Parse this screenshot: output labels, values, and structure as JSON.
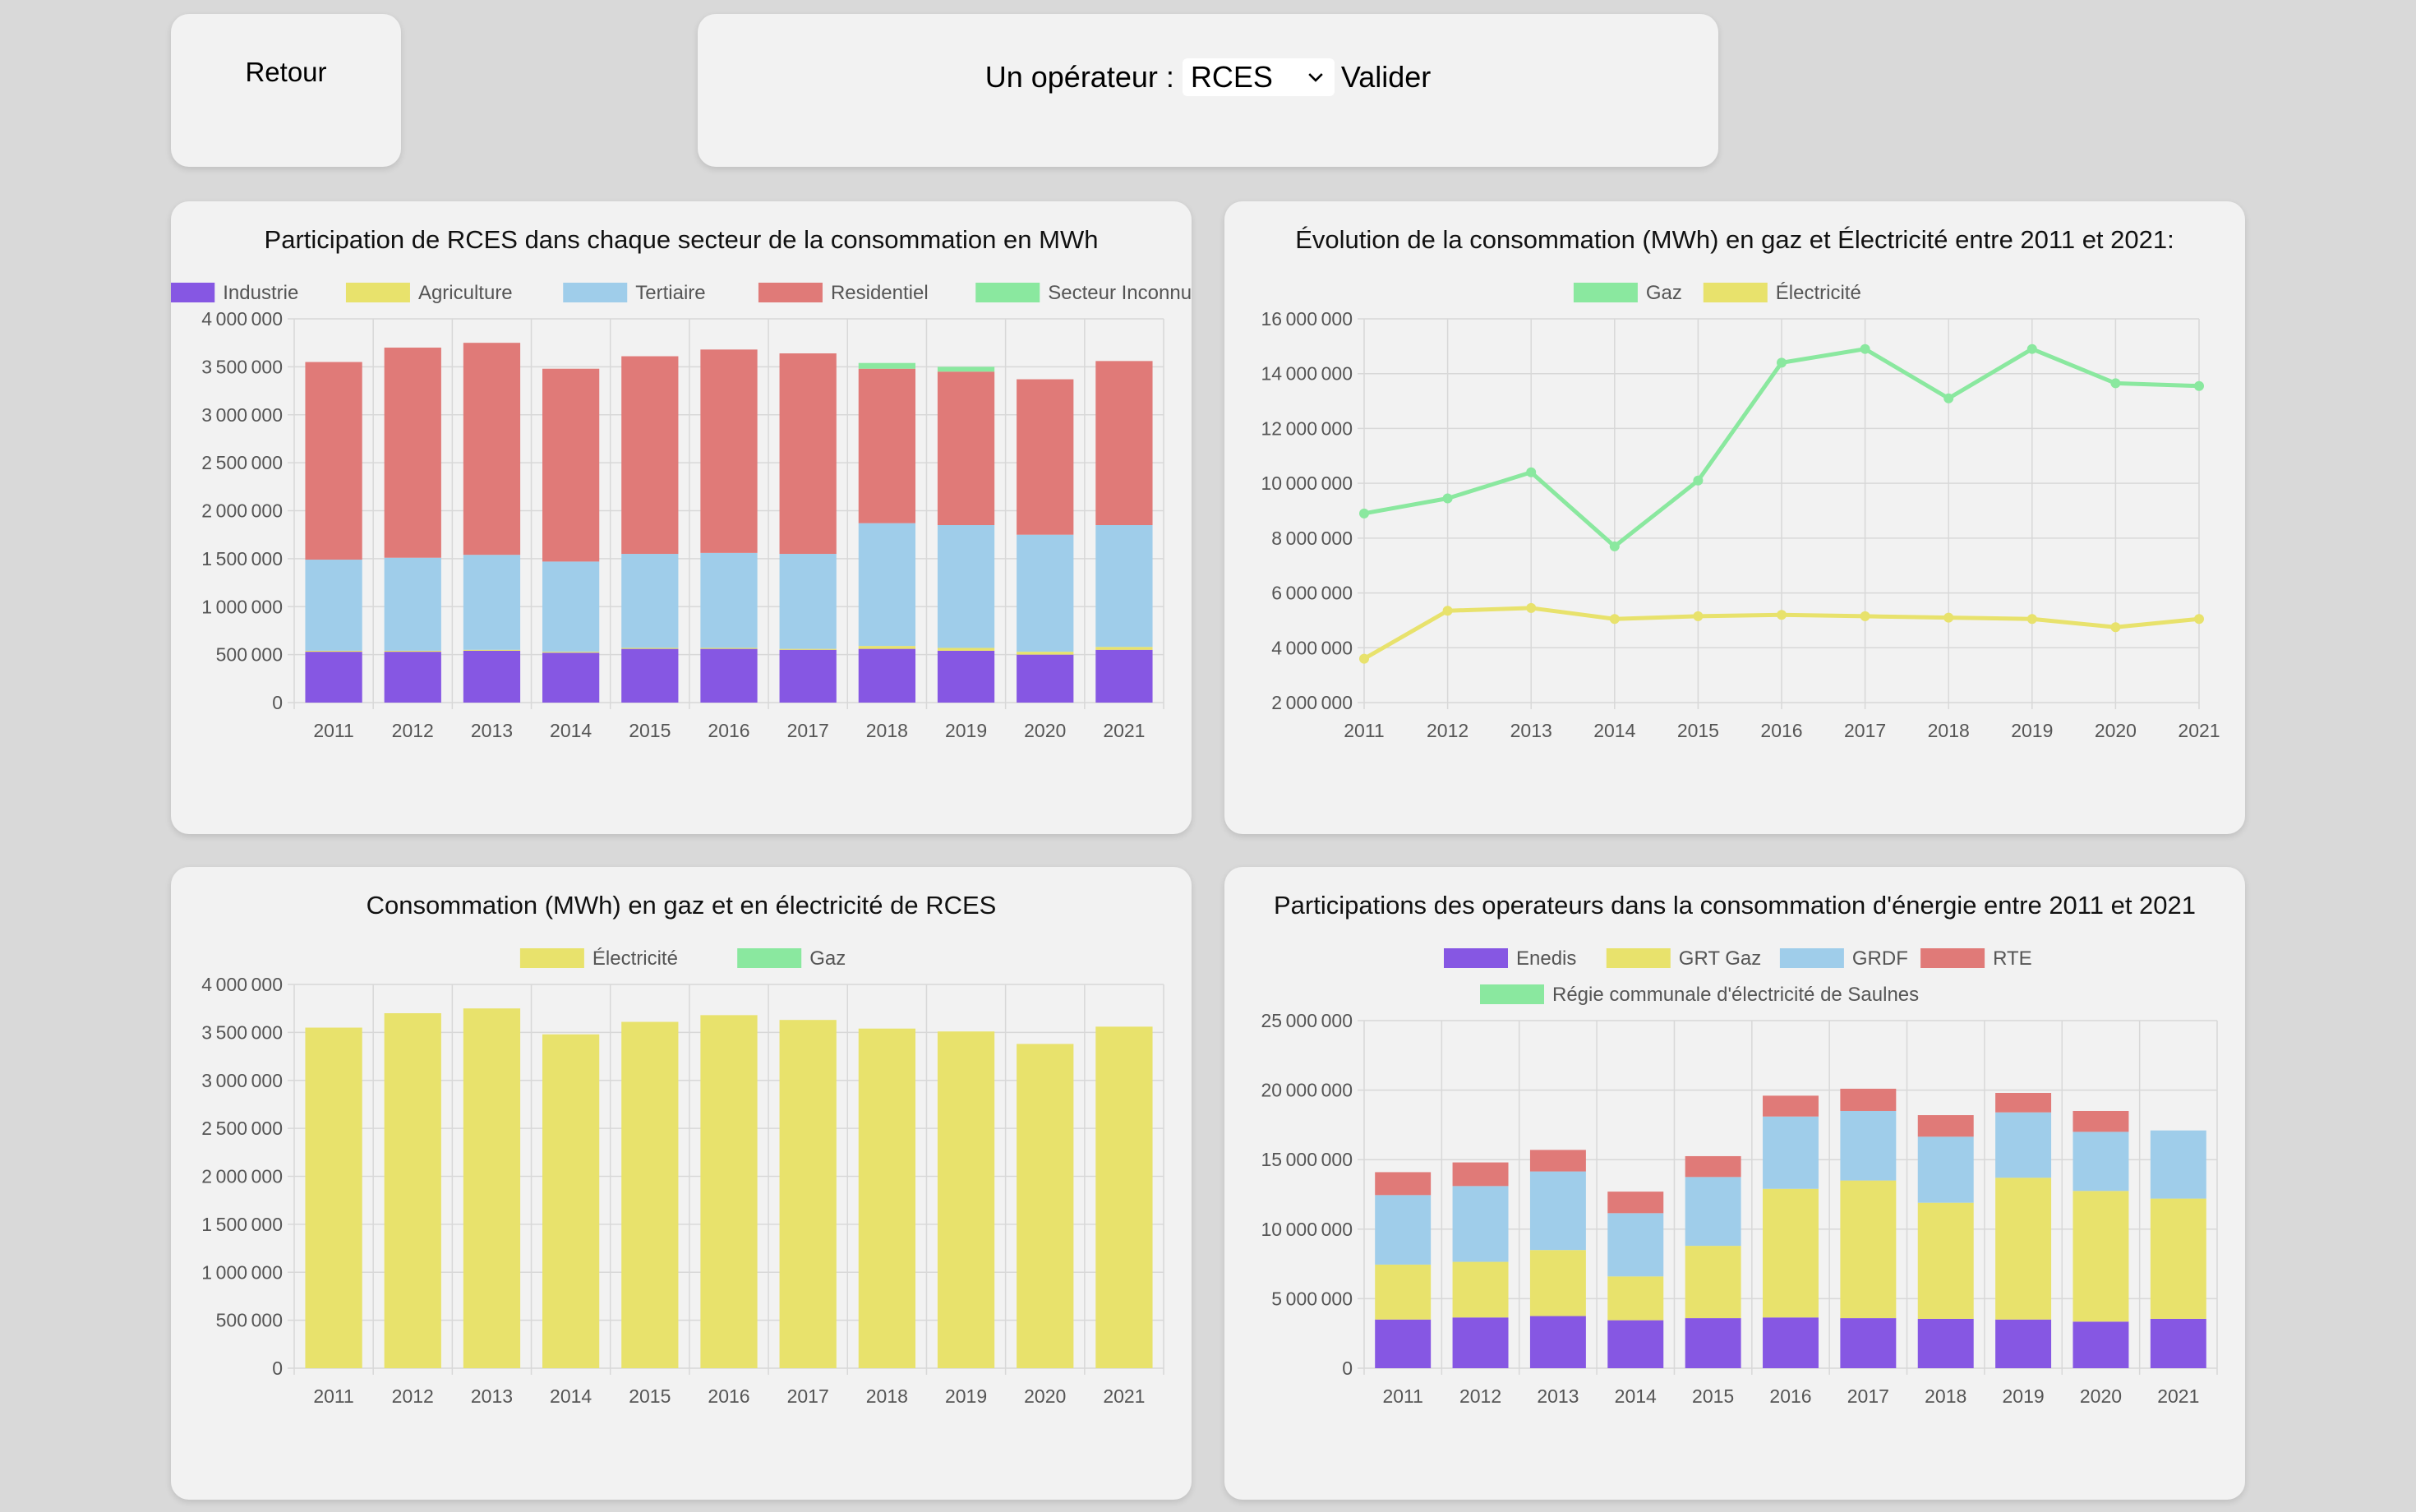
{
  "nav": {
    "back_label": "Retour"
  },
  "operator": {
    "label": "Un opérateur :",
    "selected": "RCES",
    "submit_label": "Valider"
  },
  "colors": {
    "grid": "#d8d8d8",
    "tick": "#555555",
    "purple": "#8657e3",
    "yellow": "#e8e26c",
    "blue": "#9fcdea",
    "red": "#e07a78",
    "green": "#8ae89f"
  },
  "chart_data": [
    {
      "id": "c1",
      "type": "bar",
      "stacked": true,
      "title": "Participation de RCES dans chaque secteur de la consommation en MWh",
      "categories": [
        "2011",
        "2012",
        "2013",
        "2014",
        "2015",
        "2016",
        "2017",
        "2018",
        "2019",
        "2020",
        "2021"
      ],
      "ylim": [
        0,
        4000000
      ],
      "yticks": [
        0,
        500000,
        1000000,
        1500000,
        2000000,
        2500000,
        3000000,
        3500000,
        4000000
      ],
      "grid": true,
      "legend": "top",
      "series": [
        {
          "name": "Industrie",
          "color": "#8657e3",
          "values": [
            530000,
            530000,
            540000,
            520000,
            560000,
            560000,
            550000,
            560000,
            540000,
            500000,
            550000
          ]
        },
        {
          "name": "Agriculture",
          "color": "#e8e26c",
          "values": [
            10000,
            10000,
            10000,
            10000,
            10000,
            10000,
            10000,
            30000,
            30000,
            30000,
            30000
          ]
        },
        {
          "name": "Tertiaire",
          "color": "#9fcdea",
          "values": [
            950000,
            970000,
            990000,
            940000,
            980000,
            990000,
            990000,
            1280000,
            1280000,
            1220000,
            1270000
          ]
        },
        {
          "name": "Residentiel",
          "color": "#e07a78",
          "values": [
            2060000,
            2190000,
            2210000,
            2010000,
            2060000,
            2120000,
            2090000,
            1610000,
            1600000,
            1620000,
            1710000
          ]
        },
        {
          "name": "Secteur Inconnu",
          "color": "#8ae89f",
          "values": [
            0,
            0,
            0,
            0,
            0,
            0,
            0,
            60000,
            50000,
            0,
            0
          ]
        }
      ]
    },
    {
      "id": "c2",
      "type": "line",
      "title": "Évolution de la consommation (MWh) en gaz et Électricité entre 2011 et 2021:",
      "categories": [
        "2011",
        "2012",
        "2013",
        "2014",
        "2015",
        "2016",
        "2017",
        "2018",
        "2019",
        "2020",
        "2021"
      ],
      "ylim": [
        2000000,
        16000000
      ],
      "yticks": [
        2000000,
        4000000,
        6000000,
        8000000,
        10000000,
        12000000,
        14000000,
        16000000
      ],
      "grid": true,
      "legend": "top",
      "series": [
        {
          "name": "Gaz",
          "color": "#8ae89f",
          "values": [
            8900000,
            9450000,
            10400000,
            7700000,
            10100000,
            14400000,
            14900000,
            13100000,
            14900000,
            13650000,
            13550000
          ]
        },
        {
          "name": "Électricité",
          "color": "#e8e26c",
          "values": [
            3600000,
            5350000,
            5450000,
            5050000,
            5150000,
            5200000,
            5150000,
            5100000,
            5050000,
            4750000,
            5050000
          ]
        }
      ]
    },
    {
      "id": "c3",
      "type": "bar",
      "stacked": true,
      "title": "Consommation (MWh) en gaz et en électricité de RCES",
      "categories": [
        "2011",
        "2012",
        "2013",
        "2014",
        "2015",
        "2016",
        "2017",
        "2018",
        "2019",
        "2020",
        "2021"
      ],
      "ylim": [
        0,
        4000000
      ],
      "yticks": [
        0,
        500000,
        1000000,
        1500000,
        2000000,
        2500000,
        3000000,
        3500000,
        4000000
      ],
      "grid": true,
      "legend": "top",
      "series": [
        {
          "name": "Électricité",
          "color": "#e8e26c",
          "values": [
            3550000,
            3700000,
            3750000,
            3480000,
            3610000,
            3680000,
            3630000,
            3540000,
            3510000,
            3380000,
            3560000
          ]
        },
        {
          "name": "Gaz",
          "color": "#8ae89f",
          "values": [
            0,
            0,
            0,
            0,
            0,
            0,
            0,
            0,
            0,
            0,
            0
          ]
        }
      ]
    },
    {
      "id": "c4",
      "type": "bar",
      "stacked": true,
      "title": "Participations des operateurs dans la consommation d'énergie entre 2011 et 2021",
      "categories": [
        "2011",
        "2012",
        "2013",
        "2014",
        "2015",
        "2016",
        "2017",
        "2018",
        "2019",
        "2020",
        "2021"
      ],
      "ylim": [
        0,
        25000000
      ],
      "yticks": [
        0,
        5000000,
        10000000,
        15000000,
        20000000,
        25000000
      ],
      "grid": true,
      "legend": "top",
      "series": [
        {
          "name": "Enedis",
          "color": "#8657e3",
          "values": [
            3500000,
            3650000,
            3750000,
            3450000,
            3600000,
            3650000,
            3600000,
            3550000,
            3500000,
            3350000,
            3550000
          ]
        },
        {
          "name": "GRT Gaz",
          "color": "#e8e26c",
          "values": [
            3950000,
            4000000,
            4750000,
            3150000,
            5200000,
            9250000,
            9900000,
            8350000,
            10200000,
            9400000,
            8650000
          ]
        },
        {
          "name": "GRDF",
          "color": "#9fcdea",
          "values": [
            5000000,
            5450000,
            5650000,
            4550000,
            4950000,
            5200000,
            5000000,
            4750000,
            4700000,
            4250000,
            4900000
          ]
        },
        {
          "name": "RTE",
          "color": "#e07a78",
          "values": [
            1650000,
            1700000,
            1550000,
            1550000,
            1500000,
            1500000,
            1600000,
            1550000,
            1400000,
            1500000,
            0
          ]
        },
        {
          "name": "Régie communale d'électricité de Saulnes",
          "color": "#8ae89f",
          "values": [
            0,
            0,
            0,
            0,
            0,
            0,
            0,
            0,
            0,
            0,
            0
          ]
        }
      ]
    }
  ]
}
